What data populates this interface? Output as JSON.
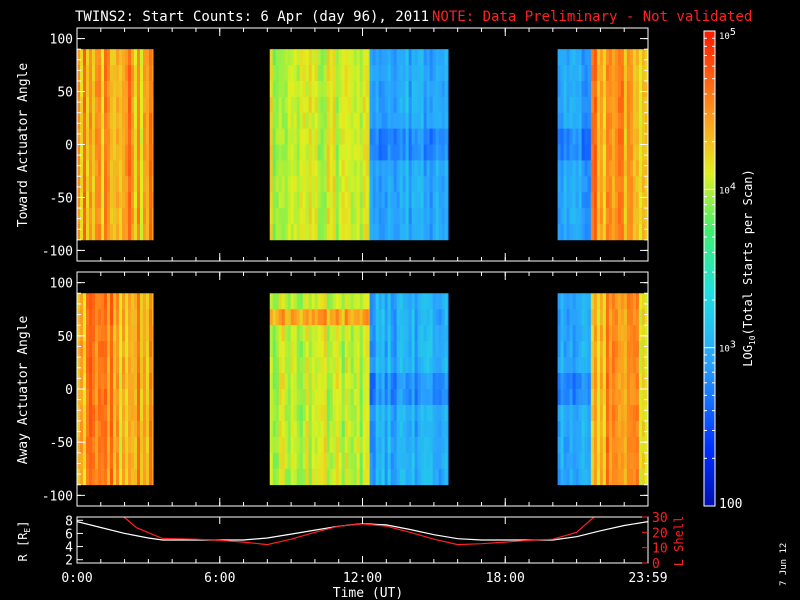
{
  "header": {
    "title": "TWINS2: Start Counts:  6 Apr (day  96), 2011",
    "note": "NOTE: Data Preliminary - Not validated"
  },
  "footer": {
    "date_stamp": "7 Jun 12"
  },
  "colors": {
    "background": "#000000",
    "axes": "#ffffff",
    "note": "#ff2020",
    "r_line": "#ffffff",
    "lshell_line": "#ff2020"
  },
  "chart_data": [
    {
      "type": "heatmap",
      "panel": "toward",
      "ylabel": "Toward Actuator Angle",
      "ylim": [
        -110,
        110
      ],
      "yticks": [
        -100,
        -50,
        0,
        50,
        100
      ],
      "xlim": [
        0,
        24
      ],
      "xticks": [
        0,
        6,
        12,
        18,
        24
      ],
      "angle_range": [
        -90,
        90
      ],
      "segments": [
        {
          "start": 0.0,
          "end": 3.2,
          "level": "high"
        },
        {
          "start": 8.1,
          "end": 12.3,
          "level": "medium"
        },
        {
          "start": 12.3,
          "end": 15.6,
          "level": "low"
        },
        {
          "start": 20.2,
          "end": 21.6,
          "level": "low"
        },
        {
          "start": 21.6,
          "end": 24.0,
          "level": "high"
        }
      ]
    },
    {
      "type": "heatmap",
      "panel": "away",
      "ylabel": "Away Actuator Angle",
      "ylim": [
        -110,
        110
      ],
      "yticks": [
        -100,
        -50,
        0,
        50,
        100
      ],
      "xlim": [
        0,
        24
      ],
      "xticks": [
        0,
        6,
        12,
        18,
        24
      ],
      "angle_range": [
        -90,
        90
      ],
      "segments": [
        {
          "start": 0.0,
          "end": 3.2,
          "level": "high"
        },
        {
          "start": 8.1,
          "end": 12.3,
          "level": "medium"
        },
        {
          "start": 12.3,
          "end": 15.6,
          "level": "low"
        },
        {
          "start": 20.2,
          "end": 21.6,
          "level": "low"
        },
        {
          "start": 21.6,
          "end": 24.0,
          "level": "high"
        }
      ]
    },
    {
      "type": "line",
      "panel": "ephemeris",
      "ylabel_left": "R [R",
      "ylabel_left_sub": "E",
      "ylabel_left_end": "]",
      "ylabel_right": "L Shell",
      "ylim_left": [
        1.5,
        8.5
      ],
      "yticks_left": [
        2,
        4,
        6,
        8
      ],
      "ylim_right": [
        0,
        30
      ],
      "yticks_right": [
        0,
        10,
        20,
        30
      ],
      "xlabel": "Time (UT)",
      "xlim": [
        0,
        24
      ],
      "xtick_labels": [
        "0:00",
        "6:00",
        "12:00",
        "18:00",
        "23:59"
      ],
      "xtick_values": [
        0,
        6,
        12,
        18,
        24
      ],
      "series": [
        {
          "axis": "left",
          "color": "#ffffff",
          "x": [
            0,
            1,
            2,
            3,
            3.6,
            5,
            6,
            7,
            8,
            9,
            10,
            11,
            12,
            13,
            14,
            15,
            16,
            17,
            18,
            19,
            20,
            21,
            22,
            23,
            24
          ],
          "y": [
            7.8,
            6.9,
            6.0,
            5.3,
            5.0,
            5.0,
            5.0,
            5.0,
            5.3,
            5.9,
            6.5,
            7.1,
            7.5,
            7.3,
            6.6,
            5.8,
            5.2,
            5.0,
            5.0,
            5.0,
            5.0,
            5.5,
            6.4,
            7.2,
            7.8
          ]
        },
        {
          "axis": "right",
          "color": "#ff2020",
          "x": [
            1.9,
            2.5,
            3.6,
            5,
            6,
            7,
            8,
            9,
            10,
            11,
            12,
            13,
            14,
            15,
            16,
            17,
            18,
            19,
            20,
            21,
            21.8
          ],
          "y": [
            31,
            23,
            16,
            15.5,
            14.8,
            13.6,
            12,
            15.5,
            20,
            24,
            25.5,
            24,
            20,
            15.5,
            12,
            12.6,
            13.6,
            14.8,
            15.5,
            20,
            31
          ]
        }
      ]
    }
  ],
  "colorbar": {
    "label": "LOG",
    "label_sub": "10",
    "label_end": "(Total Starts per Scan)",
    "ticks": [
      {
        "value": 100,
        "base": "100",
        "exp": ""
      },
      {
        "value": 1000,
        "base": "10",
        "exp": "3"
      },
      {
        "value": 10000,
        "base": "10",
        "exp": "4"
      },
      {
        "value": 100000,
        "base": "10",
        "exp": "5"
      }
    ],
    "range": [
      100,
      100000
    ]
  }
}
